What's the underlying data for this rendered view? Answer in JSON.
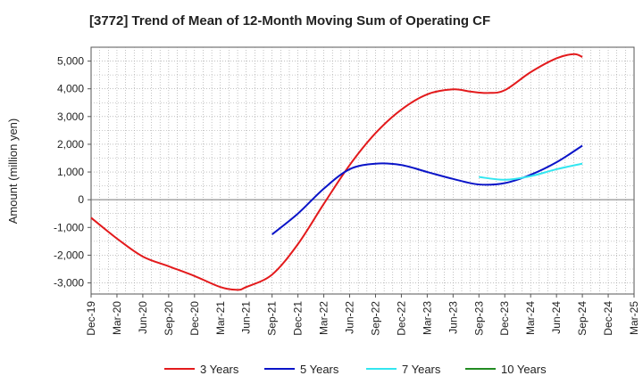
{
  "chart_data": {
    "type": "line",
    "title": "[3772]  Trend of Mean of 12-Month Moving Sum of Operating CF",
    "xlabel": "",
    "ylabel": "Amount (million yen)",
    "ylim": [
      -3400,
      5500
    ],
    "yticks": [
      5000,
      4000,
      3000,
      2000,
      1000,
      0,
      -1000,
      -2000,
      -3000
    ],
    "ytick_labels": [
      "5,000",
      "4,000",
      "3,000",
      "2,000",
      "1,000",
      "0",
      "-1,000",
      "-2,000",
      "-3,000"
    ],
    "xticks": [
      "Dec-19",
      "Mar-20",
      "Jun-20",
      "Sep-20",
      "Dec-20",
      "Mar-21",
      "Jun-21",
      "Sep-21",
      "Dec-21",
      "Mar-22",
      "Jun-22",
      "Sep-22",
      "Dec-22",
      "Mar-23",
      "Jun-23",
      "Sep-23",
      "Dec-23",
      "Mar-24",
      "Jun-24",
      "Sep-24",
      "Dec-24",
      "Mar-25"
    ],
    "grid": true,
    "legend_position": "bottom",
    "series": [
      {
        "name": "3 Years",
        "color": "#e31a1c",
        "x": [
          "Dec-19",
          "Mar-20",
          "Jun-20",
          "Sep-20",
          "Dec-20",
          "Mar-21",
          "May-21",
          "Jun-21",
          "Sep-21",
          "Dec-21",
          "Mar-22",
          "Jun-22",
          "Sep-22",
          "Dec-22",
          "Mar-23",
          "Jun-23",
          "Aug-23",
          "Oct-23",
          "Dec-23",
          "Mar-24",
          "Jun-24",
          "Aug-24",
          "Sep-24"
        ],
        "values": [
          -650,
          -1400,
          -2050,
          -2400,
          -2750,
          -3150,
          -3250,
          -3150,
          -2700,
          -1600,
          -150,
          1250,
          2400,
          3250,
          3800,
          3980,
          3900,
          3850,
          3950,
          4600,
          5100,
          5250,
          5150
        ]
      },
      {
        "name": "5 Years",
        "color": "#0a14c8",
        "x": [
          "Sep-21",
          "Dec-21",
          "Mar-22",
          "Jun-22",
          "Sep-22",
          "Dec-22",
          "Mar-23",
          "Jun-23",
          "Sep-23",
          "Dec-23",
          "Mar-24",
          "Jun-24",
          "Sep-24"
        ],
        "values": [
          -1250,
          -500,
          400,
          1100,
          1300,
          1250,
          1000,
          750,
          550,
          600,
          900,
          1350,
          1950
        ]
      },
      {
        "name": "7 Years",
        "color": "#33e6f0",
        "x": [
          "Sep-23",
          "Dec-23",
          "Mar-24",
          "Jun-24",
          "Sep-24"
        ],
        "values": [
          820,
          720,
          850,
          1100,
          1300
        ]
      },
      {
        "name": "10 Years",
        "color": "#228b22",
        "x": [],
        "values": []
      }
    ]
  }
}
